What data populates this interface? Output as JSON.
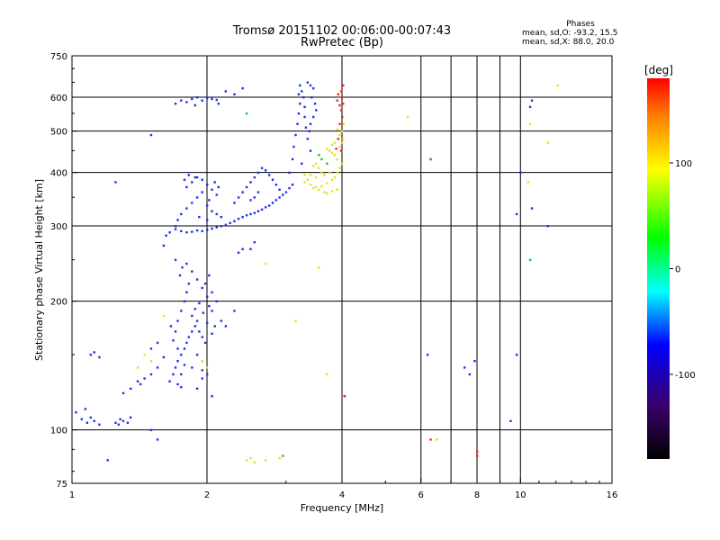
{
  "header": {
    "title_line1": "Tromsø 20151102 00:06:00-00:07:43",
    "title_line2": "RwPretec (Bp)"
  },
  "phase_box": {
    "heading": "Phases",
    "line1": "mean, sd,O: -93.2, 15.5",
    "line2": "mean, sd,X:  88.0, 20.0"
  },
  "chart_data": {
    "type": "scatter",
    "xlabel": "Frequency [MHz]",
    "ylabel": "Stationary phase Virtual Height [km]",
    "x_scale": "log",
    "y_scale": "log",
    "xlim": [
      1,
      16
    ],
    "ylim": [
      75,
      750
    ],
    "x_ticks": [
      1,
      2,
      4,
      6,
      8,
      10,
      16
    ],
    "y_ticks": [
      75,
      100,
      200,
      300,
      400,
      500,
      600,
      750
    ],
    "x_minor_gridlines": [
      7,
      9
    ],
    "grid": true,
    "colorbar": {
      "label": "[deg]",
      "range": [
        -180,
        180
      ],
      "ticks": [
        100,
        0,
        -100
      ],
      "colors": [
        "#000000",
        "#3a006a",
        "#0000ff",
        "#00ffff",
        "#00ff00",
        "#ffff00",
        "#ff8000",
        "#ff0000"
      ]
    },
    "series": [
      {
        "mode": "O",
        "phase_deg": -93.2,
        "color": "#2030e8",
        "points": [
          [
            1.05,
            106
          ],
          [
            1.08,
            104
          ],
          [
            1.1,
            107
          ],
          [
            1.12,
            105
          ],
          [
            1.15,
            103
          ],
          [
            1.02,
            110
          ],
          [
            1.07,
            112
          ],
          [
            1.25,
            104
          ],
          [
            1.28,
            106
          ],
          [
            1.3,
            105
          ],
          [
            1.33,
            104
          ],
          [
            1.35,
            107
          ],
          [
            1.27,
            103
          ],
          [
            1.1,
            150
          ],
          [
            1.12,
            152
          ],
          [
            1.15,
            148
          ],
          [
            1.3,
            122
          ],
          [
            1.35,
            125
          ],
          [
            1.4,
            130
          ],
          [
            1.45,
            132
          ],
          [
            1.5,
            135
          ],
          [
            1.42,
            128
          ],
          [
            1.55,
            140
          ],
          [
            1.5,
            155
          ],
          [
            1.55,
            160
          ],
          [
            1.6,
            148
          ],
          [
            1.65,
            130
          ],
          [
            1.68,
            135
          ],
          [
            1.7,
            140
          ],
          [
            1.72,
            145
          ],
          [
            1.75,
            150
          ],
          [
            1.78,
            155
          ],
          [
            1.8,
            160
          ],
          [
            1.82,
            165
          ],
          [
            1.85,
            170
          ],
          [
            1.88,
            175
          ],
          [
            1.9,
            180
          ],
          [
            1.92,
            170
          ],
          [
            1.95,
            165
          ],
          [
            1.98,
            160
          ],
          [
            1.7,
            170
          ],
          [
            1.72,
            180
          ],
          [
            1.75,
            190
          ],
          [
            1.78,
            200
          ],
          [
            1.8,
            210
          ],
          [
            1.82,
            220
          ],
          [
            1.74,
            230
          ],
          [
            1.76,
            240
          ],
          [
            1.7,
            250
          ],
          [
            1.8,
            245
          ],
          [
            1.85,
            235
          ],
          [
            1.9,
            225
          ],
          [
            1.95,
            215
          ],
          [
            2.0,
            205
          ],
          [
            2.02,
            195
          ],
          [
            1.85,
            185
          ],
          [
            1.88,
            192
          ],
          [
            1.92,
            198
          ],
          [
            1.96,
            188
          ],
          [
            2.0,
            178
          ],
          [
            2.05,
            168
          ],
          [
            2.08,
            175
          ],
          [
            2.05,
            190
          ],
          [
            2.1,
            200
          ],
          [
            2.05,
            210
          ],
          [
            1.98,
            220
          ],
          [
            2.02,
            230
          ],
          [
            1.9,
            150
          ],
          [
            1.95,
            145
          ],
          [
            1.85,
            140
          ],
          [
            1.75,
            135
          ],
          [
            1.78,
            142
          ],
          [
            1.72,
            155
          ],
          [
            1.68,
            162
          ],
          [
            1.66,
            175
          ],
          [
            1.95,
            132
          ],
          [
            2.0,
            135
          ],
          [
            1.95,
            138
          ],
          [
            1.72,
            128
          ],
          [
            1.75,
            126
          ],
          [
            1.65,
            290
          ],
          [
            1.7,
            295
          ],
          [
            1.75,
            292
          ],
          [
            1.8,
            290
          ],
          [
            1.85,
            291
          ],
          [
            1.9,
            293
          ],
          [
            1.95,
            292
          ],
          [
            2.0,
            294
          ],
          [
            2.05,
            296
          ],
          [
            2.1,
            298
          ],
          [
            2.15,
            300
          ],
          [
            2.2,
            302
          ],
          [
            2.25,
            305
          ],
          [
            2.3,
            308
          ],
          [
            2.35,
            312
          ],
          [
            2.4,
            315
          ],
          [
            2.45,
            318
          ],
          [
            2.5,
            320
          ],
          [
            2.55,
            322
          ],
          [
            2.6,
            325
          ],
          [
            2.65,
            328
          ],
          [
            2.7,
            332
          ],
          [
            2.75,
            335
          ],
          [
            2.8,
            340
          ],
          [
            2.85,
            345
          ],
          [
            2.9,
            350
          ],
          [
            2.95,
            355
          ],
          [
            3.0,
            360
          ],
          [
            3.05,
            368
          ],
          [
            3.1,
            375
          ],
          [
            1.7,
            300
          ],
          [
            1.72,
            310
          ],
          [
            1.75,
            320
          ],
          [
            1.8,
            330
          ],
          [
            1.85,
            340
          ],
          [
            1.9,
            350
          ],
          [
            1.95,
            360
          ],
          [
            1.8,
            370
          ],
          [
            1.85,
            380
          ],
          [
            1.9,
            390
          ],
          [
            1.95,
            385
          ],
          [
            2.0,
            375
          ],
          [
            2.05,
            365
          ],
          [
            2.1,
            355
          ],
          [
            2.02,
            345
          ],
          [
            2.0,
            335
          ],
          [
            2.05,
            325
          ],
          [
            2.1,
            320
          ],
          [
            2.15,
            315
          ],
          [
            2.0,
            310
          ],
          [
            1.92,
            315
          ],
          [
            1.78,
            385
          ],
          [
            1.82,
            395
          ],
          [
            1.88,
            390
          ],
          [
            2.12,
            370
          ],
          [
            2.08,
            380
          ],
          [
            2.3,
            340
          ],
          [
            2.35,
            350
          ],
          [
            2.4,
            360
          ],
          [
            2.45,
            370
          ],
          [
            2.5,
            380
          ],
          [
            2.55,
            390
          ],
          [
            2.6,
            400
          ],
          [
            2.65,
            410
          ],
          [
            2.7,
            405
          ],
          [
            2.75,
            395
          ],
          [
            2.8,
            385
          ],
          [
            2.85,
            375
          ],
          [
            2.9,
            365
          ],
          [
            2.6,
            360
          ],
          [
            2.55,
            350
          ],
          [
            2.5,
            345
          ],
          [
            3.05,
            400
          ],
          [
            3.1,
            430
          ],
          [
            3.12,
            460
          ],
          [
            3.15,
            490
          ],
          [
            3.18,
            520
          ],
          [
            3.2,
            550
          ],
          [
            3.22,
            580
          ],
          [
            3.2,
            610
          ],
          [
            3.22,
            640
          ],
          [
            3.25,
            620
          ],
          [
            3.28,
            600
          ],
          [
            3.3,
            570
          ],
          [
            3.3,
            540
          ],
          [
            3.32,
            510
          ],
          [
            3.35,
            480
          ],
          [
            3.4,
            450
          ],
          [
            3.25,
            420
          ],
          [
            3.35,
            650
          ],
          [
            3.4,
            640
          ],
          [
            3.45,
            630
          ],
          [
            3.42,
            600
          ],
          [
            3.48,
            580
          ],
          [
            3.5,
            560
          ],
          [
            3.45,
            540
          ],
          [
            3.4,
            520
          ],
          [
            3.38,
            500
          ],
          [
            1.7,
            580
          ],
          [
            1.75,
            590
          ],
          [
            1.8,
            585
          ],
          [
            1.85,
            595
          ],
          [
            1.9,
            600
          ],
          [
            1.95,
            590
          ],
          [
            2.0,
            598
          ],
          [
            2.05,
            595
          ],
          [
            2.1,
            592
          ],
          [
            2.12,
            580
          ],
          [
            1.88,
            575
          ],
          [
            2.2,
            620
          ],
          [
            2.3,
            610
          ],
          [
            2.4,
            630
          ],
          [
            1.5,
            490
          ],
          [
            1.25,
            380
          ],
          [
            2.35,
            260
          ],
          [
            2.5,
            265
          ],
          [
            2.55,
            275
          ],
          [
            2.4,
            265
          ],
          [
            1.6,
            270
          ],
          [
            1.62,
            285
          ],
          [
            2.2,
            175
          ],
          [
            2.15,
            180
          ],
          [
            2.3,
            190
          ],
          [
            2.05,
            120
          ],
          [
            1.9,
            125
          ],
          [
            1.2,
            85
          ],
          [
            1.5,
            100
          ],
          [
            1.55,
            95
          ],
          [
            6.3,
            430
          ],
          [
            7.9,
            145
          ],
          [
            7.7,
            135
          ],
          [
            9.8,
            150
          ],
          [
            9.5,
            105
          ],
          [
            10.0,
            400
          ],
          [
            9.8,
            320
          ],
          [
            10.6,
            330
          ],
          [
            11.5,
            300
          ],
          [
            10.5,
            570
          ],
          [
            10.6,
            590
          ],
          [
            6.2,
            150
          ],
          [
            4.05,
            120
          ],
          [
            7.5,
            140
          ]
        ]
      },
      {
        "mode": "X",
        "phase_deg": 88.0,
        "color": "#e8e020",
        "points": [
          [
            3.3,
            380
          ],
          [
            3.4,
            375
          ],
          [
            3.5,
            370
          ],
          [
            3.6,
            372
          ],
          [
            3.7,
            378
          ],
          [
            3.8,
            385
          ],
          [
            3.85,
            390
          ],
          [
            3.9,
            400
          ],
          [
            3.95,
            410
          ],
          [
            4.0,
            420
          ],
          [
            3.9,
            430
          ],
          [
            3.85,
            440
          ],
          [
            3.8,
            445
          ],
          [
            3.75,
            450
          ],
          [
            3.7,
            455
          ],
          [
            3.6,
            400
          ],
          [
            3.55,
            410
          ],
          [
            3.5,
            420
          ],
          [
            3.45,
            415
          ],
          [
            3.65,
            395
          ],
          [
            3.75,
            400
          ],
          [
            3.95,
            460
          ],
          [
            4.0,
            470
          ],
          [
            4.02,
            480
          ],
          [
            4.0,
            500
          ],
          [
            4.03,
            520
          ],
          [
            3.95,
            490
          ],
          [
            3.9,
            505
          ],
          [
            3.85,
            470
          ],
          [
            3.8,
            465
          ],
          [
            3.65,
            360
          ],
          [
            3.55,
            365
          ],
          [
            3.45,
            368
          ],
          [
            3.35,
            385
          ],
          [
            3.3,
            395
          ],
          [
            3.4,
            395
          ],
          [
            3.5,
            390
          ],
          [
            3.9,
            365
          ],
          [
            3.8,
            362
          ],
          [
            3.7,
            358
          ],
          [
            2.45,
            85
          ],
          [
            2.5,
            86
          ],
          [
            2.55,
            84
          ],
          [
            2.7,
            85
          ],
          [
            2.9,
            86
          ],
          [
            2.7,
            245
          ],
          [
            3.55,
            240
          ],
          [
            3.15,
            180
          ],
          [
            3.7,
            135
          ],
          [
            6.5,
            95
          ],
          [
            5.6,
            540
          ],
          [
            10.5,
            520
          ],
          [
            10.4,
            380
          ],
          [
            11.5,
            470
          ],
          [
            12.1,
            640
          ],
          [
            2.0,
            140
          ],
          [
            1.95,
            145
          ],
          [
            1.6,
            185
          ],
          [
            1.5,
            145
          ],
          [
            1.4,
            140
          ],
          [
            1.45,
            150
          ]
        ]
      },
      {
        "mode": "X-red",
        "phase_deg": 170,
        "color": "#e8281e",
        "points": [
          [
            3.95,
            520
          ],
          [
            4.0,
            540
          ],
          [
            3.98,
            560
          ],
          [
            4.02,
            580
          ],
          [
            4.0,
            600
          ],
          [
            3.98,
            620
          ],
          [
            4.02,
            640
          ],
          [
            3.92,
            610
          ],
          [
            3.9,
            590
          ],
          [
            3.95,
            575
          ],
          [
            3.92,
            480
          ],
          [
            3.88,
            455
          ],
          [
            3.98,
            450
          ],
          [
            4.05,
            120
          ],
          [
            6.3,
            95
          ],
          [
            8.0,
            87
          ],
          [
            8.0,
            89
          ]
        ]
      },
      {
        "mode": "mixed-green",
        "phase_deg": 20,
        "color": "#20c030",
        "points": [
          [
            3.6,
            430
          ],
          [
            3.7,
            420
          ],
          [
            3.55,
            440
          ],
          [
            2.95,
            87
          ],
          [
            6.3,
            430
          ],
          [
            2.45,
            550
          ],
          [
            10.5,
            250
          ]
        ]
      }
    ]
  }
}
